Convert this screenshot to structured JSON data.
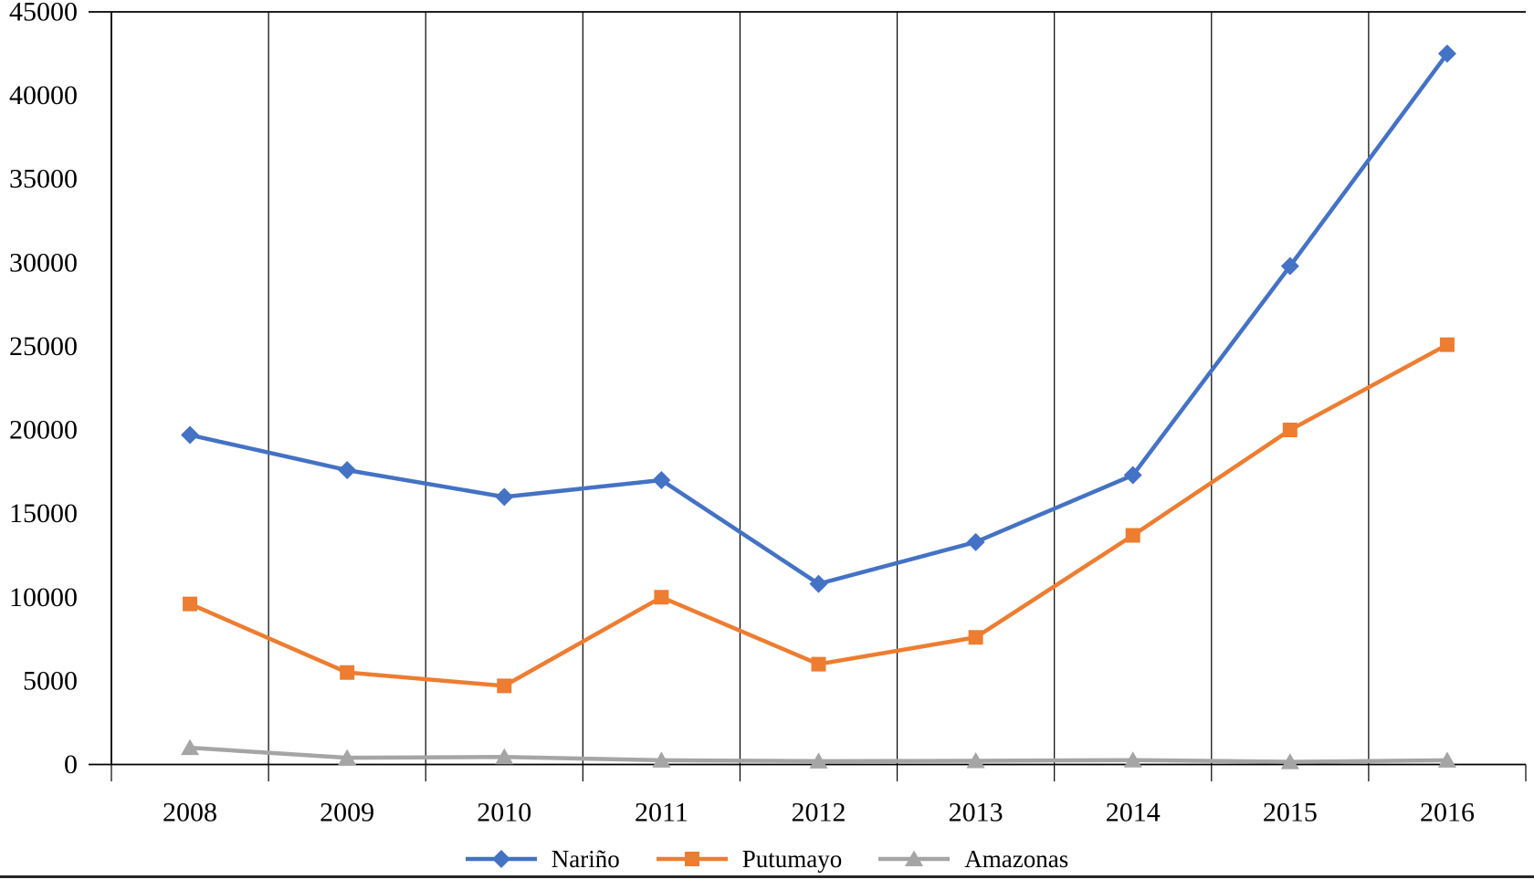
{
  "chart_data": {
    "type": "line",
    "title": "",
    "xlabel": "",
    "ylabel": "",
    "categories": [
      "2008",
      "2009",
      "2010",
      "2011",
      "2012",
      "2013",
      "2014",
      "2015",
      "2016"
    ],
    "series": [
      {
        "name": "Nariño",
        "color": "#4472C4",
        "marker": "diamond",
        "values": [
          19700,
          17600,
          16000,
          17000,
          10800,
          13300,
          17300,
          29800,
          42500
        ]
      },
      {
        "name": "Putumayo",
        "color": "#ED7D31",
        "marker": "square",
        "values": [
          9600,
          5500,
          4700,
          10000,
          6000,
          7600,
          13700,
          20000,
          25100
        ]
      },
      {
        "name": "Amazonas",
        "color": "#A5A5A5",
        "marker": "triangle",
        "values": [
          1000,
          400,
          450,
          250,
          200,
          220,
          260,
          160,
          250
        ]
      }
    ],
    "ylim": [
      0,
      45000
    ],
    "y_tick_step": 5000,
    "y_tick_labels": [
      "0",
      "5000",
      "10000",
      "15000",
      "20000",
      "25000",
      "30000",
      "35000",
      "40000",
      "45000"
    ],
    "grid": "vertical-only",
    "legend_position": "bottom",
    "axis_color": "#000000",
    "divider_color": "#262626"
  }
}
